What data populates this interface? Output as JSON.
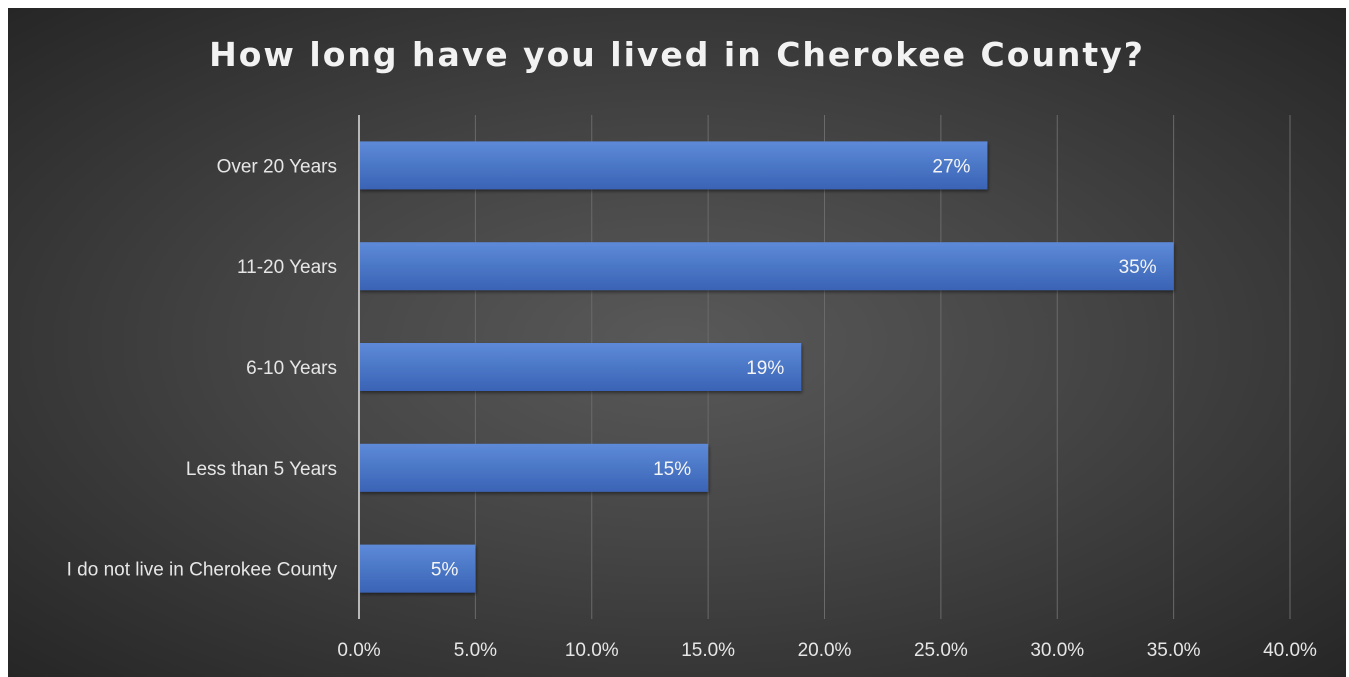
{
  "chart_data": {
    "type": "bar",
    "orientation": "horizontal",
    "title": "How long have you lived in Cherokee County?",
    "categories": [
      "Over 20 Years",
      "11-20 Years",
      "6-10 Years",
      "Less than 5 Years",
      "I do not live in Cherokee County"
    ],
    "values": [
      0.27,
      0.35,
      0.19,
      0.15,
      0.05
    ],
    "data_labels": [
      "27%",
      "35%",
      "19%",
      "15%",
      "5%"
    ],
    "xlim": [
      0,
      0.4
    ],
    "x_ticks": [
      0,
      0.05,
      0.1,
      0.15,
      0.2,
      0.25,
      0.3,
      0.35,
      0.4
    ],
    "x_tick_labels": [
      "0.0%",
      "5.0%",
      "10.0%",
      "15.0%",
      "20.0%",
      "25.0%",
      "30.0%",
      "35.0%",
      "40.0%"
    ],
    "xlabel": "",
    "ylabel": "",
    "grid": true,
    "legend": "none",
    "colors": {
      "bar": "#4472c4",
      "background": "#404040",
      "text": "#e6e6e6"
    }
  }
}
